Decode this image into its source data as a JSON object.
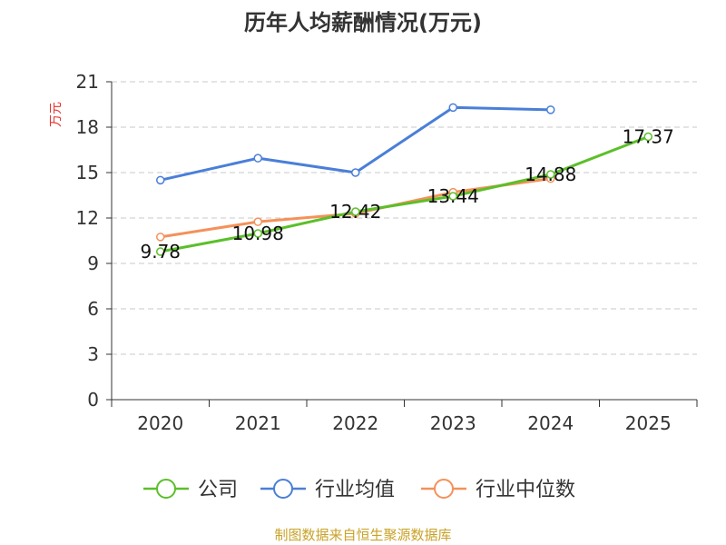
{
  "chart_data": {
    "type": "line",
    "title": "历年人均薪酬情况(万元)",
    "ylabel": "万元",
    "xlabel": "",
    "categories": [
      "2020",
      "2021",
      "2022",
      "2023",
      "2024",
      "2025"
    ],
    "ylim": [
      0,
      21
    ],
    "yticks": [
      0,
      3,
      6,
      9,
      12,
      15,
      18,
      21
    ],
    "ytick_labels": [
      "0",
      "3",
      "6",
      "9",
      "12",
      "15",
      "18",
      "21"
    ],
    "grid": "horizontal-dashed",
    "legend_position": "bottom",
    "series": [
      {
        "name": "公司",
        "color": "#5cbf2a",
        "values": [
          9.78,
          10.98,
          12.42,
          13.44,
          14.88,
          17.37
        ],
        "labels": [
          "9.78",
          "10.98",
          "12.42",
          "13.44",
          "14.88",
          "17.37"
        ]
      },
      {
        "name": "行业均值",
        "color": "#4a7fd8",
        "values": [
          14.5,
          15.95,
          15.0,
          19.3,
          19.15,
          null
        ]
      },
      {
        "name": "行业中位数",
        "color": "#f4915a",
        "values": [
          10.75,
          11.75,
          12.3,
          13.7,
          14.6,
          null
        ]
      }
    ]
  },
  "source_text": "制图数据来自恒生聚源数据库"
}
